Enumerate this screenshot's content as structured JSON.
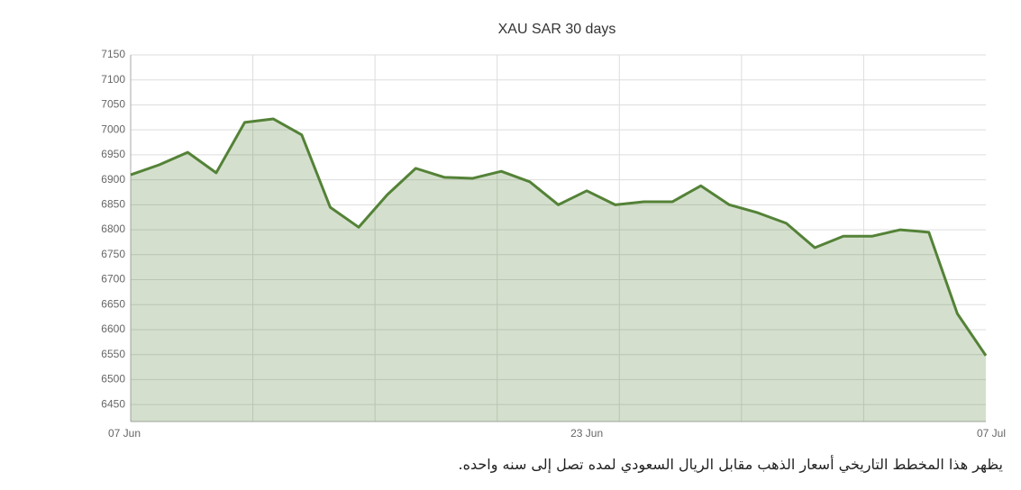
{
  "chart_data": {
    "type": "area",
    "title": "XAU SAR 30 days",
    "categories": [
      "07 Jun",
      null,
      null,
      null,
      null,
      null,
      null,
      null,
      null,
      null,
      null,
      null,
      null,
      null,
      null,
      null,
      "23 Jun",
      null,
      null,
      null,
      null,
      null,
      null,
      null,
      null,
      null,
      null,
      null,
      null,
      null,
      "07 Jul"
    ],
    "series": [
      {
        "name": "XAU SAR",
        "color": "#548237",
        "values": [
          6910,
          6930,
          6955,
          6914,
          7015,
          7022,
          6990,
          6845,
          6805,
          6870,
          6923,
          6905,
          6903,
          6917,
          6896,
          6850,
          6878,
          6850,
          6856,
          6856,
          6888,
          6850,
          6834,
          6813,
          6764,
          6787,
          6787,
          6800,
          6795,
          6632,
          6548
        ]
      }
    ],
    "ylim": [
      6416,
      7150
    ],
    "yticks": [
      6450,
      6500,
      6550,
      6600,
      6650,
      6700,
      6750,
      6800,
      6850,
      6900,
      6950,
      7000,
      7050,
      7100,
      7150
    ],
    "grid": true
  },
  "caption": "يظهر هذا المخطط التاريخي أسعار الذهب مقابل الريال السعودي لمده تصل إلى سنه واحده."
}
